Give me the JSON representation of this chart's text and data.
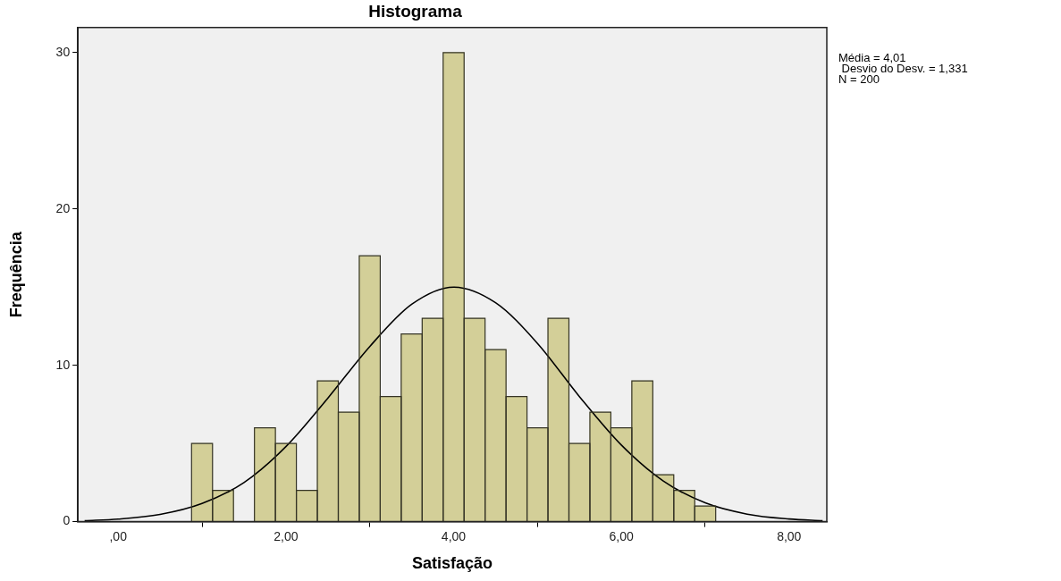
{
  "chart_data": {
    "type": "histogram",
    "title": "Histograma",
    "xlabel": "Satisfação",
    "ylabel": "Frequência",
    "bins": [
      0.875,
      1.125,
      1.375,
      1.625,
      1.875,
      2.125,
      2.375,
      2.625,
      2.875,
      3.125,
      3.375,
      3.625,
      3.875,
      4.125,
      4.375,
      4.625,
      4.875,
      5.125,
      5.375,
      5.625,
      5.875,
      6.125,
      6.375,
      6.625,
      6.875,
      7.125
    ],
    "values": [
      5,
      2,
      0,
      6,
      5,
      2,
      9,
      7,
      17,
      8,
      12,
      13,
      30,
      13,
      11,
      8,
      6,
      13,
      5,
      7,
      6,
      9,
      3,
      2,
      1
    ],
    "color": "#d3cf98",
    "series": [
      {
        "type": "line",
        "color": "#000000",
        "x": [
          -0.4,
          0,
          0.5,
          1,
          1.5,
          2,
          2.5,
          3,
          3.5,
          4,
          4.5,
          5,
          5.5,
          6,
          6.5,
          7,
          7.5,
          8,
          8.4
        ],
        "values": [
          0.06,
          0.16,
          0.46,
          1.16,
          2.5,
          4.8,
          7.9,
          11.2,
          13.9,
          15,
          14,
          11.4,
          8,
          4.9,
          2.6,
          1.2,
          0.48,
          0.17,
          0.06
        ]
      }
    ],
    "xlim": [
      -0.48,
      8.45
    ],
    "xticks": [
      {
        "value": 0,
        "label": ",00"
      },
      {
        "value": 2,
        "label": "2,00"
      },
      {
        "value": 4,
        "label": "4,00"
      },
      {
        "value": 6,
        "label": "6,00"
      },
      {
        "value": 8,
        "label": "8,00"
      }
    ],
    "ylim": [
      0,
      31.6
    ],
    "yticks": [
      0,
      10,
      20,
      30
    ],
    "annotations": [
      "Média = 4,01",
      " Desvio do Desv. = 1,331",
      "N = 200"
    ],
    "grid": false,
    "legend": false,
    "marker": "none",
    "line_style": "solid"
  }
}
